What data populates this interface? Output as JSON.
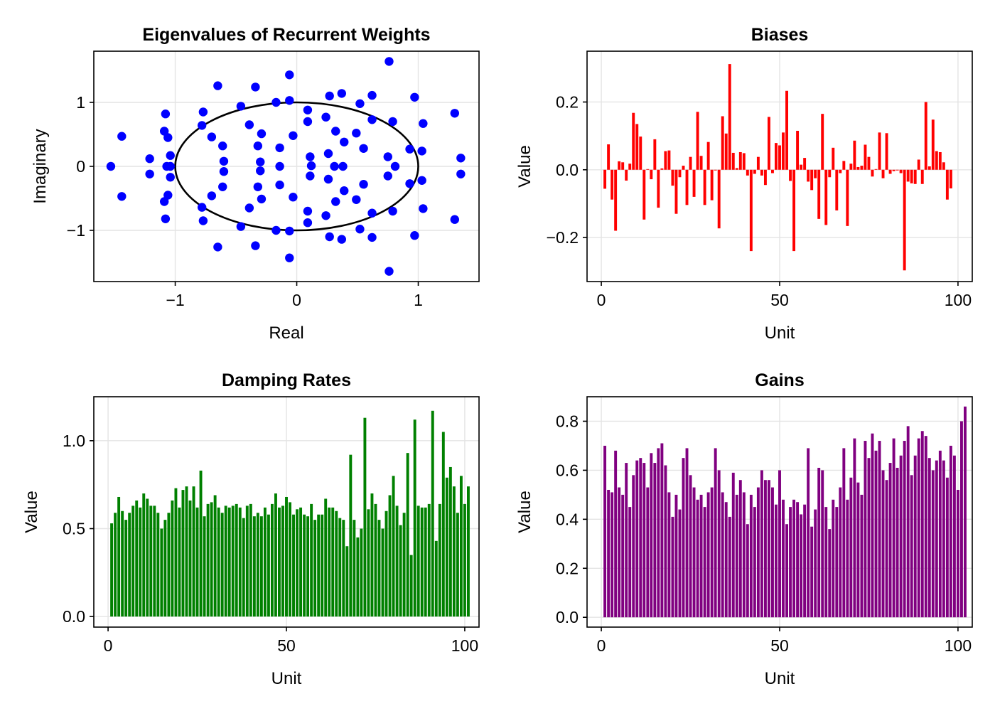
{
  "chart_data": [
    {
      "type": "scatter",
      "title": "Eigenvalues of Recurrent Weights",
      "xlabel": "Real",
      "ylabel": "Imaginary",
      "xlim": [
        -1.67,
        1.5
      ],
      "ylim": [
        -1.8,
        1.8
      ],
      "xticks": [
        -1,
        0,
        1
      ],
      "yticks": [
        -1,
        0,
        1
      ],
      "xtick_labels": [
        "−1",
        "0",
        "1"
      ],
      "ytick_labels": [
        "−1",
        "0",
        "1"
      ],
      "grid": true,
      "color": "#0000ff",
      "circle": {
        "radius": 1,
        "color": "#000000"
      },
      "points": [
        [
          -1.53,
          0.0
        ],
        [
          -1.44,
          0.47
        ],
        [
          -1.44,
          -0.47
        ],
        [
          -1.21,
          0.12
        ],
        [
          -1.21,
          -0.12
        ],
        [
          -1.08,
          0.82
        ],
        [
          -1.08,
          -0.82
        ],
        [
          -1.09,
          0.55
        ],
        [
          -1.09,
          -0.55
        ],
        [
          -1.06,
          0.45
        ],
        [
          -1.06,
          -0.45
        ],
        [
          -1.07,
          0.0
        ],
        [
          -1.04,
          0.0
        ],
        [
          -1.04,
          0.17
        ],
        [
          -1.04,
          -0.17
        ],
        [
          -0.77,
          0.85
        ],
        [
          -0.77,
          -0.85
        ],
        [
          -0.78,
          0.64
        ],
        [
          -0.78,
          -0.64
        ],
        [
          -0.7,
          0.46
        ],
        [
          -0.7,
          -0.46
        ],
        [
          -0.65,
          1.26
        ],
        [
          -0.65,
          -1.26
        ],
        [
          -0.61,
          0.32
        ],
        [
          -0.61,
          -0.32
        ],
        [
          -0.6,
          0.08
        ],
        [
          -0.6,
          -0.08
        ],
        [
          -0.46,
          0.94
        ],
        [
          -0.46,
          -0.94
        ],
        [
          -0.39,
          0.65
        ],
        [
          -0.39,
          -0.65
        ],
        [
          -0.34,
          1.24
        ],
        [
          -0.34,
          -1.24
        ],
        [
          -0.32,
          0.32
        ],
        [
          -0.32,
          -0.32
        ],
        [
          -0.3,
          0.07
        ],
        [
          -0.3,
          -0.07
        ],
        [
          -0.29,
          0.51
        ],
        [
          -0.29,
          -0.51
        ],
        [
          -0.17,
          1.0
        ],
        [
          -0.17,
          -1.0
        ],
        [
          -0.14,
          0.29
        ],
        [
          -0.14,
          -0.29
        ],
        [
          -0.14,
          0.0
        ],
        [
          -0.06,
          1.43
        ],
        [
          -0.06,
          -1.43
        ],
        [
          -0.06,
          1.03
        ],
        [
          -0.06,
          -1.01
        ],
        [
          -0.03,
          0.48
        ],
        [
          -0.03,
          -0.48
        ],
        [
          0.09,
          0.88
        ],
        [
          0.09,
          -0.88
        ],
        [
          0.09,
          0.7
        ],
        [
          0.09,
          -0.7
        ],
        [
          0.11,
          0.15
        ],
        [
          0.11,
          -0.15
        ],
        [
          0.12,
          0.01
        ],
        [
          0.24,
          0.77
        ],
        [
          0.24,
          -0.77
        ],
        [
          0.26,
          0.2
        ],
        [
          0.26,
          -0.2
        ],
        [
          0.27,
          1.1
        ],
        [
          0.27,
          -1.1
        ],
        [
          0.32,
          0.55
        ],
        [
          0.32,
          -0.55
        ],
        [
          0.31,
          0.0
        ],
        [
          0.37,
          1.14
        ],
        [
          0.37,
          -1.14
        ],
        [
          0.39,
          0.38
        ],
        [
          0.39,
          -0.38
        ],
        [
          0.38,
          0.0
        ],
        [
          0.49,
          0.52
        ],
        [
          0.49,
          -0.52
        ],
        [
          0.52,
          0.98
        ],
        [
          0.52,
          -0.98
        ],
        [
          0.55,
          0.28
        ],
        [
          0.55,
          -0.28
        ],
        [
          0.62,
          1.11
        ],
        [
          0.62,
          -1.11
        ],
        [
          0.62,
          0.73
        ],
        [
          0.62,
          -0.73
        ],
        [
          0.75,
          0.15
        ],
        [
          0.75,
          -0.15
        ],
        [
          0.76,
          1.64
        ],
        [
          0.76,
          -1.64
        ],
        [
          0.79,
          0.7
        ],
        [
          0.79,
          -0.7
        ],
        [
          0.81,
          0.0
        ],
        [
          0.93,
          0.27
        ],
        [
          0.93,
          -0.27
        ],
        [
          0.97,
          1.08
        ],
        [
          0.97,
          -1.08
        ],
        [
          1.03,
          0.24
        ],
        [
          1.03,
          -0.22
        ],
        [
          1.04,
          0.67
        ],
        [
          1.04,
          -0.66
        ],
        [
          1.3,
          0.83
        ],
        [
          1.3,
          -0.83
        ],
        [
          1.35,
          0.13
        ],
        [
          1.35,
          -0.12
        ]
      ]
    },
    {
      "type": "bar",
      "title": "Biases",
      "xlabel": "Unit",
      "ylabel": "Value",
      "xlim": [
        -4,
        104
      ],
      "ylim": [
        -0.33,
        0.35
      ],
      "xticks": [
        0,
        50,
        100
      ],
      "yticks": [
        -0.2,
        0.0,
        0.2
      ],
      "xtick_labels": [
        "0",
        "50",
        "100"
      ],
      "ytick_labels": [
        "−0.2",
        "0.0",
        "0.2"
      ],
      "grid": true,
      "color": "#ff0000",
      "x_start": 1,
      "values": [
        -0.056,
        0.075,
        -0.088,
        -0.18,
        0.025,
        0.022,
        -0.032,
        0.018,
        0.168,
        0.135,
        0.098,
        -0.147,
        0.002,
        -0.028,
        0.09,
        -0.112,
        0.004,
        0.055,
        0.057,
        -0.047,
        -0.13,
        -0.022,
        0.012,
        -0.104,
        0.038,
        -0.08,
        0.171,
        0.041,
        -0.104,
        0.082,
        -0.09,
        -0.002,
        -0.173,
        0.158,
        0.107,
        0.312,
        0.05,
        0.005,
        0.052,
        0.049,
        -0.017,
        -0.24,
        -0.012,
        0.038,
        -0.017,
        -0.045,
        0.156,
        -0.01,
        0.079,
        0.072,
        0.11,
        0.233,
        -0.033,
        -0.24,
        0.115,
        0.015,
        0.035,
        -0.035,
        -0.06,
        -0.025,
        -0.145,
        0.165,
        -0.163,
        -0.022,
        0.065,
        -0.12,
        -0.01,
        0.026,
        -0.166,
        0.018,
        0.086,
        0.008,
        0.012,
        0.074,
        0.038,
        -0.02,
        0.002,
        0.11,
        -0.025,
        0.108,
        -0.012,
        -0.004,
        -0.002,
        -0.01,
        -0.297,
        -0.035,
        -0.04,
        -0.042,
        0.03,
        -0.042,
        0.2,
        0.01,
        0.148,
        0.055,
        0.052,
        0.022,
        -0.088,
        -0.055
      ]
    },
    {
      "type": "bar",
      "title": "Damping Rates",
      "xlabel": "Unit",
      "ylabel": "Value",
      "xlim": [
        -4,
        104
      ],
      "ylim": [
        -0.06,
        1.25
      ],
      "xticks": [
        0,
        50,
        100
      ],
      "yticks": [
        0.0,
        0.5,
        1.0
      ],
      "xtick_labels": [
        "0",
        "50",
        "100"
      ],
      "ytick_labels": [
        "0.0",
        "0.5",
        "1.0"
      ],
      "grid": true,
      "color": "#008000",
      "x_start": 1,
      "values": [
        0.53,
        0.59,
        0.68,
        0.6,
        0.55,
        0.59,
        0.63,
        0.66,
        0.62,
        0.7,
        0.67,
        0.63,
        0.63,
        0.59,
        0.5,
        0.55,
        0.59,
        0.66,
        0.73,
        0.62,
        0.72,
        0.74,
        0.66,
        0.74,
        0.62,
        0.83,
        0.57,
        0.64,
        0.65,
        0.69,
        0.62,
        0.59,
        0.63,
        0.62,
        0.63,
        0.64,
        0.62,
        0.56,
        0.63,
        0.64,
        0.57,
        0.59,
        0.57,
        0.62,
        0.58,
        0.64,
        0.7,
        0.62,
        0.63,
        0.68,
        0.65,
        0.58,
        0.61,
        0.62,
        0.58,
        0.57,
        0.64,
        0.55,
        0.58,
        0.58,
        0.67,
        0.62,
        0.62,
        0.6,
        0.56,
        0.55,
        0.4,
        0.92,
        0.55,
        0.45,
        0.5,
        1.13,
        0.61,
        0.7,
        0.64,
        0.55,
        0.5,
        0.6,
        0.69,
        0.8,
        0.63,
        0.52,
        0.59,
        0.93,
        0.35,
        1.12,
        0.63,
        0.62,
        0.62,
        0.64,
        1.17,
        0.43,
        0.64,
        1.05,
        0.79,
        0.85,
        0.74,
        0.59,
        0.8,
        0.64,
        0.74
      ]
    },
    {
      "type": "bar",
      "title": "Gains",
      "xlabel": "Unit",
      "ylabel": "Value",
      "xlim": [
        -4,
        104
      ],
      "ylim": [
        -0.04,
        0.9
      ],
      "xticks": [
        0,
        50,
        100
      ],
      "yticks": [
        0.0,
        0.2,
        0.4,
        0.6,
        0.8
      ],
      "xtick_labels": [
        "0",
        "50",
        "100"
      ],
      "ytick_labels": [
        "0.0",
        "0.2",
        "0.4",
        "0.6",
        "0.8"
      ],
      "grid": true,
      "color": "#800080",
      "x_start": 1,
      "values": [
        0.7,
        0.52,
        0.51,
        0.68,
        0.53,
        0.5,
        0.63,
        0.45,
        0.58,
        0.64,
        0.65,
        0.63,
        0.53,
        0.67,
        0.63,
        0.69,
        0.71,
        0.62,
        0.51,
        0.41,
        0.5,
        0.44,
        0.65,
        0.69,
        0.58,
        0.53,
        0.48,
        0.5,
        0.45,
        0.51,
        0.53,
        0.69,
        0.6,
        0.51,
        0.47,
        0.41,
        0.59,
        0.5,
        0.56,
        0.51,
        0.38,
        0.5,
        0.45,
        0.53,
        0.6,
        0.56,
        0.56,
        0.53,
        0.46,
        0.6,
        0.48,
        0.38,
        0.45,
        0.48,
        0.47,
        0.42,
        0.46,
        0.69,
        0.37,
        0.44,
        0.61,
        0.6,
        0.45,
        0.36,
        0.48,
        0.45,
        0.53,
        0.69,
        0.48,
        0.57,
        0.73,
        0.55,
        0.5,
        0.72,
        0.65,
        0.75,
        0.68,
        0.72,
        0.6,
        0.56,
        0.63,
        0.73,
        0.61,
        0.66,
        0.72,
        0.78,
        0.58,
        0.66,
        0.73,
        0.76,
        0.74,
        0.65,
        0.6,
        0.64,
        0.68,
        0.64,
        0.57,
        0.7,
        0.66,
        0.52,
        0.8,
        0.86
      ]
    }
  ]
}
